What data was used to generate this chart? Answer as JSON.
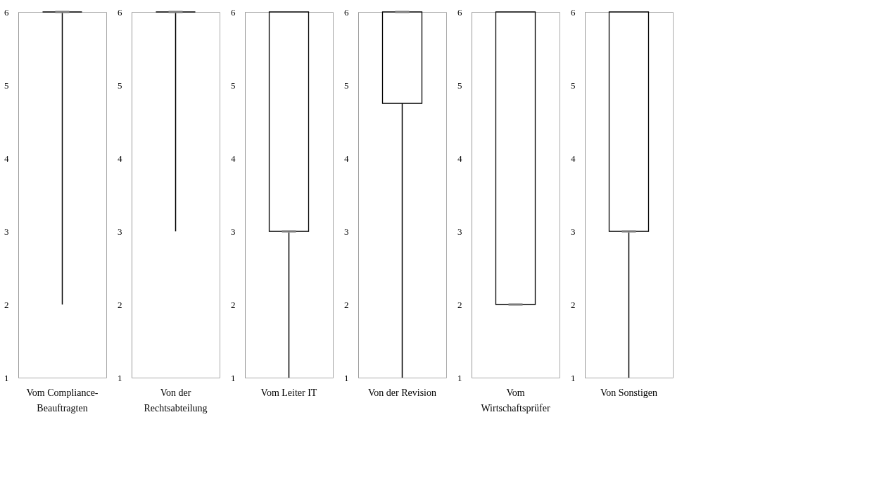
{
  "chart_data": [
    {
      "type": "box",
      "categories": [
        "Vom Compliance-Beauftragten"
      ],
      "boxes": [
        {
          "low": 2,
          "q1": 6,
          "median": 6,
          "q3": 6,
          "high": 6
        }
      ],
      "ylim": [
        1,
        6
      ],
      "yticks": [
        1,
        2,
        3,
        4,
        5,
        6
      ],
      "grid": false
    },
    {
      "type": "box",
      "categories": [
        "Von der Rechtsabteilung"
      ],
      "boxes": [
        {
          "low": 3,
          "q1": 6,
          "median": 6,
          "q3": 6,
          "high": 6
        }
      ],
      "ylim": [
        1,
        6
      ],
      "yticks": [
        1,
        2,
        3,
        4,
        5,
        6
      ],
      "grid": false
    },
    {
      "type": "box",
      "categories": [
        "Vom Leiter IT"
      ],
      "boxes": [
        {
          "low": 1,
          "q1": 3,
          "median": 3,
          "q3": 6,
          "high": 6
        }
      ],
      "ylim": [
        1,
        6
      ],
      "yticks": [
        1,
        2,
        3,
        4,
        5,
        6
      ],
      "grid": false
    },
    {
      "type": "box",
      "categories": [
        "Von der Revision"
      ],
      "boxes": [
        {
          "low": 1,
          "q1": 4.75,
          "median": 6,
          "q3": 6,
          "high": 6
        }
      ],
      "ylim": [
        1,
        6
      ],
      "yticks": [
        1,
        2,
        3,
        4,
        5,
        6
      ],
      "grid": false
    },
    {
      "type": "box",
      "categories": [
        "Vom Wirtschaftsprüfer"
      ],
      "boxes": [
        {
          "low": 2,
          "q1": 2,
          "median": 2,
          "q3": 6,
          "high": 6
        }
      ],
      "ylim": [
        1,
        6
      ],
      "yticks": [
        1,
        2,
        3,
        4,
        5,
        6
      ],
      "grid": false
    },
    {
      "type": "box",
      "categories": [
        "Von Sonstigen"
      ],
      "boxes": [
        {
          "low": 1,
          "q1": 3,
          "median": 3,
          "q3": 6,
          "high": 6
        }
      ],
      "ylim": [
        1,
        6
      ],
      "yticks": [
        1,
        2,
        3,
        4,
        5,
        6
      ],
      "grid": false
    }
  ]
}
